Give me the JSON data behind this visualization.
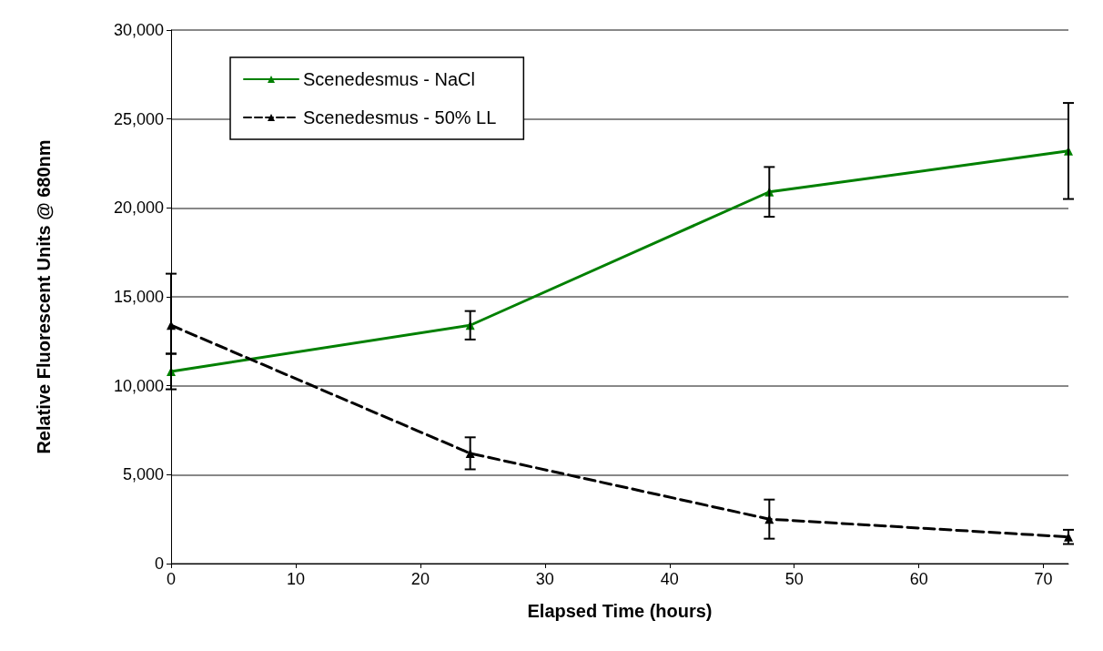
{
  "chart_data": {
    "type": "line",
    "xlabel": "Elapsed Time (hours)",
    "ylabel": "Relative Fluorescent Units @ 680nm",
    "x": [
      0,
      24,
      48,
      72
    ],
    "series": [
      {
        "name": "Scenedesmus - NaCl",
        "color": "#008000",
        "values": [
          10800,
          13400,
          20900,
          23200
        ],
        "errors": [
          1000,
          800,
          1400,
          2700
        ],
        "line_style": "solid"
      },
      {
        "name": "Scenedesmus - 50% LL",
        "color": "#000000",
        "values": [
          13400,
          6200,
          2500,
          1500
        ],
        "errors": [
          [
            11800,
            16300
          ],
          900,
          1100,
          400
        ],
        "line_style": "dashed"
      }
    ],
    "xlim": [
      0,
      72
    ],
    "xticks": [
      0,
      10,
      20,
      30,
      40,
      50,
      60,
      70
    ],
    "ylim": [
      0,
      30000
    ],
    "yticks": [
      0,
      {
        "value": 5000,
        "label": "5,000"
      },
      {
        "value": 10000,
        "label": "10,000"
      },
      {
        "value": 15000,
        "label": "15,000"
      },
      {
        "value": 20000,
        "label": "20,000"
      },
      {
        "value": 25000,
        "label": "25,000"
      },
      {
        "value": 30000,
        "label": "30,000"
      }
    ],
    "grid": "y",
    "legend": "top left",
    "marker": "triangle"
  }
}
